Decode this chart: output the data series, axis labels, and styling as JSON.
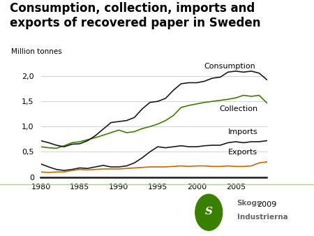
{
  "title_line1": "Consumption, collection, imports and",
  "title_line2": "exports of recovered paper in Sweden",
  "ylabel": "Million tonnes",
  "background_color": "#ffffff",
  "xlim": [
    1980,
    2009
  ],
  "ylim": [
    0,
    2.2
  ],
  "yticks": [
    0,
    0.5,
    1.0,
    1.5,
    2.0
  ],
  "ytick_labels": [
    "0",
    "0,5",
    "1,0",
    "1,5",
    "2,0"
  ],
  "xticks": [
    1980,
    1985,
    1990,
    1995,
    2000,
    2005
  ],
  "years": [
    1980,
    1981,
    1982,
    1983,
    1984,
    1985,
    1986,
    1987,
    1988,
    1989,
    1990,
    1991,
    1992,
    1993,
    1994,
    1995,
    1996,
    1997,
    1998,
    1999,
    2000,
    2001,
    2002,
    2003,
    2004,
    2005,
    2006,
    2007,
    2008,
    2009
  ],
  "consumption": [
    0.72,
    0.68,
    0.63,
    0.6,
    0.65,
    0.66,
    0.72,
    0.82,
    0.95,
    1.08,
    1.1,
    1.12,
    1.18,
    1.35,
    1.48,
    1.5,
    1.56,
    1.72,
    1.85,
    1.87,
    1.87,
    1.9,
    1.96,
    1.98,
    2.08,
    2.1,
    2.08,
    2.1,
    2.06,
    1.93
  ],
  "collection": [
    0.6,
    0.58,
    0.57,
    0.62,
    0.68,
    0.7,
    0.74,
    0.78,
    0.83,
    0.88,
    0.93,
    0.88,
    0.9,
    0.96,
    1.0,
    1.05,
    1.12,
    1.22,
    1.38,
    1.42,
    1.45,
    1.48,
    1.5,
    1.52,
    1.54,
    1.57,
    1.62,
    1.6,
    1.62,
    1.47
  ],
  "imports": [
    0.26,
    0.2,
    0.15,
    0.13,
    0.15,
    0.18,
    0.17,
    0.2,
    0.23,
    0.2,
    0.2,
    0.22,
    0.28,
    0.38,
    0.5,
    0.6,
    0.58,
    0.6,
    0.62,
    0.6,
    0.6,
    0.62,
    0.63,
    0.63,
    0.68,
    0.7,
    0.68,
    0.7,
    0.7,
    0.72
  ],
  "exports": [
    0.1,
    0.09,
    0.1,
    0.1,
    0.13,
    0.15,
    0.14,
    0.15,
    0.16,
    0.16,
    0.16,
    0.17,
    0.18,
    0.19,
    0.2,
    0.2,
    0.2,
    0.21,
    0.22,
    0.21,
    0.22,
    0.22,
    0.21,
    0.21,
    0.22,
    0.21,
    0.21,
    0.22,
    0.28,
    0.3
  ],
  "consumption_color": "#1a1a1a",
  "collection_color": "#3a8000",
  "imports_color": "#1a1a1a",
  "exports_color": "#cc6600",
  "grid_color": "#cccccc",
  "axis_color": "#1a1a1a",
  "label_fontsize": 8,
  "title_fontsize": 12,
  "separator_color": "#b8c8a0",
  "logo_green": "#3a8000",
  "logo_text_color": "#666666"
}
